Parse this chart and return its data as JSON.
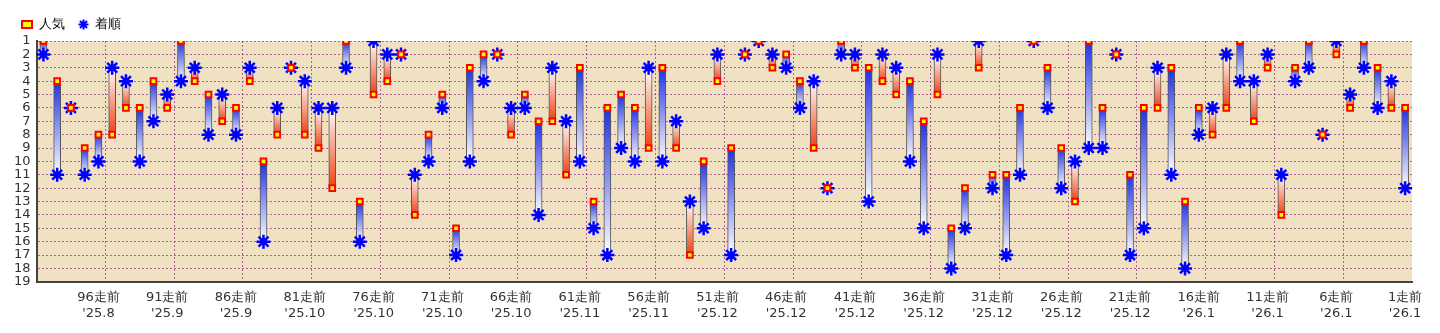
{
  "chart_data": {
    "type": "scatter",
    "categories": [
      null,
      null,
      null,
      null,
      "96走前\n'25.8",
      null,
      null,
      null,
      null,
      "91走前\n'25.9",
      null,
      null,
      null,
      null,
      "86走前\n'25.9",
      null,
      null,
      null,
      null,
      "81走前\n'25.10",
      null,
      null,
      null,
      null,
      "76走前\n'25.10",
      null,
      null,
      null,
      null,
      "71走前\n'25.10",
      null,
      null,
      null,
      null,
      "66走前\n'25.10",
      null,
      null,
      null,
      null,
      "61走前\n'25.11",
      null,
      null,
      null,
      null,
      "56走前\n'25.11",
      null,
      null,
      null,
      null,
      "51走前\n'25.12",
      null,
      null,
      null,
      null,
      "46走前\n'25.12",
      null,
      null,
      null,
      null,
      "41走前\n'25.12",
      null,
      null,
      null,
      null,
      "36走前\n'25.12",
      null,
      null,
      null,
      null,
      "31走前\n'25.12",
      null,
      null,
      null,
      null,
      "26走前\n'25.12",
      null,
      null,
      null,
      null,
      "21走前\n'25.12",
      null,
      null,
      null,
      null,
      "16走前\n'26.1",
      null,
      null,
      null,
      null,
      "11走前\n'26.1",
      null,
      null,
      null,
      null,
      "6走前\n'26.1",
      null,
      null,
      null,
      null,
      "1走前\n'26.1"
    ],
    "series": [
      {
        "name": "人気",
        "color": "#ffff00",
        "marker": "square",
        "values": [
          1,
          4,
          6,
          9,
          8,
          8,
          6,
          6,
          4,
          6,
          1,
          4,
          5,
          7,
          6,
          4,
          10,
          8,
          3,
          8,
          9,
          12,
          1,
          13,
          5,
          4,
          2,
          14,
          8,
          5,
          15,
          3,
          2,
          2,
          8,
          5,
          7,
          7,
          11,
          3,
          13,
          6,
          5,
          6,
          9,
          3,
          9,
          17,
          10,
          4,
          9,
          2,
          1,
          3,
          2,
          4,
          9,
          12,
          1,
          3,
          3,
          4,
          5,
          4,
          7,
          5,
          15,
          12,
          3,
          11,
          11,
          6,
          1,
          3,
          9,
          13,
          1,
          6,
          2,
          11,
          6,
          6,
          3,
          13,
          6,
          8,
          6,
          1,
          7,
          3,
          14,
          3,
          1,
          8,
          2,
          6,
          1,
          3,
          6,
          6
        ]
      },
      {
        "name": "着順",
        "color": "#0000ff",
        "marker": "cross",
        "values": [
          2,
          11,
          6,
          11,
          10,
          3,
          4,
          10,
          7,
          5,
          4,
          3,
          8,
          5,
          8,
          3,
          16,
          6,
          3,
          4,
          6,
          6,
          3,
          16,
          1,
          2,
          2,
          11,
          10,
          6,
          17,
          10,
          4,
          2,
          6,
          6,
          14,
          3,
          7,
          10,
          15,
          17,
          9,
          10,
          3,
          10,
          7,
          13,
          15,
          2,
          17,
          2,
          1,
          2,
          3,
          6,
          4,
          12,
          2,
          2,
          13,
          2,
          3,
          10,
          15,
          2,
          18,
          15,
          1,
          12,
          17,
          11,
          1,
          6,
          12,
          10,
          9,
          9,
          2,
          17,
          15,
          3,
          11,
          18,
          8,
          6,
          2,
          4,
          4,
          2,
          11,
          4,
          3,
          8,
          1,
          5,
          3,
          6,
          4,
          12
        ]
      },
      {
        "type": "bar",
        "colors": [
          "#2030e0",
          "#2030e0",
          "#2030e0",
          "#2030e0",
          "#2030e0",
          "#f04010",
          "#f04010",
          "#2030e0",
          "#2030e0",
          "#f04010",
          "#2030e0",
          "#f04010",
          "#2030e0",
          "#f04010",
          "#2030e0",
          "#f04010",
          "#2030e0",
          "#f04010",
          "#2030e0",
          "#f04010",
          "#f04010",
          "#f04010",
          "#2030e0",
          "#2030e0",
          "#f04010",
          "#f04010",
          "#2030e0",
          "#f04010",
          "#2030e0",
          "#2030e0",
          "#2030e0",
          "#2030e0",
          "#2030e0",
          "#2030e0",
          "#f04010",
          "#2030e0",
          "#2030e0",
          "#f04010",
          "#f04010",
          "#2030e0",
          "#2030e0",
          "#2030e0",
          "#2030e0",
          "#2030e0",
          "#f04010",
          "#2030e0",
          "#f04010",
          "#f04010",
          "#2030e0",
          "#f04010",
          "#2030e0",
          "#2030e0",
          "#2030e0",
          "#f04010",
          "#2030e0",
          "#2030e0",
          "#f04010",
          "#2030e0",
          "#2030e0",
          "#f04010",
          "#2030e0",
          "#f04010",
          "#f04010",
          "#2030e0",
          "#2030e0",
          "#f04010",
          "#2030e0",
          "#2030e0",
          "#f04010",
          "#2030e0",
          "#2030e0",
          "#2030e0",
          "#2030e0",
          "#2030e0",
          "#2030e0",
          "#f04010",
          "#2030e0",
          "#2030e0",
          "#2030e0",
          "#2030e0",
          "#2030e0",
          "#f04010",
          "#2030e0",
          "#2030e0",
          "#2030e0",
          "#f04010",
          "#f04010",
          "#2030e0",
          "#f04010",
          "#f04010",
          "#f04010",
          "#2030e0",
          "#2030e0",
          "#2030e0",
          "#f04010",
          "#f04010",
          "#2030e0",
          "#2030e0",
          "#f04010",
          "#2030e0"
        ],
        "base": [
          1,
          4,
          6,
          9,
          8,
          8,
          6,
          6,
          4,
          6,
          1,
          4,
          5,
          7,
          6,
          4,
          10,
          8,
          3,
          8,
          9,
          12,
          1,
          13,
          5,
          4,
          2,
          14,
          8,
          5,
          15,
          3,
          2,
          2,
          8,
          5,
          7,
          7,
          11,
          3,
          13,
          6,
          5,
          6,
          9,
          3,
          9,
          17,
          10,
          4,
          9,
          2,
          1,
          3,
          2,
          4,
          9,
          12,
          1,
          3,
          3,
          4,
          5,
          4,
          7,
          5,
          15,
          12,
          3,
          11,
          11,
          6,
          1,
          3,
          9,
          13,
          1,
          6,
          2,
          11,
          6,
          6,
          3,
          13,
          6,
          8,
          6,
          1,
          7,
          3,
          14,
          3,
          1,
          8,
          2,
          6,
          1,
          3,
          6,
          6
        ],
        "values": [
          1,
          7,
          0,
          2,
          2,
          -5,
          -2,
          4,
          3,
          -1,
          3,
          -1,
          3,
          -2,
          2,
          -1,
          6,
          -2,
          0,
          -4,
          -3,
          -6,
          2,
          3,
          -4,
          -2,
          0,
          -3,
          2,
          1,
          2,
          7,
          2,
          0,
          -2,
          1,
          7,
          -4,
          -4,
          7,
          2,
          11,
          4,
          4,
          -6,
          7,
          -2,
          -4,
          5,
          -2,
          8,
          0,
          0,
          -1,
          1,
          2,
          -5,
          0,
          1,
          -1,
          10,
          -2,
          -2,
          6,
          8,
          -3,
          3,
          3,
          -2,
          1,
          6,
          5,
          0,
          3,
          3,
          -3,
          8,
          3,
          0,
          6,
          9,
          -3,
          8,
          5,
          2,
          -2,
          -4,
          3,
          -3,
          -1,
          -3,
          1,
          2,
          0,
          -1,
          -1,
          2,
          3,
          -2,
          6
        ]
      }
    ],
    "ylim": [
      19,
      1
    ],
    "yticks": [
      1,
      2,
      3,
      4,
      5,
      6,
      7,
      8,
      9,
      10,
      11,
      12,
      13,
      14,
      15,
      16,
      17,
      18,
      19
    ],
    "grid": true,
    "legend": "top left"
  }
}
